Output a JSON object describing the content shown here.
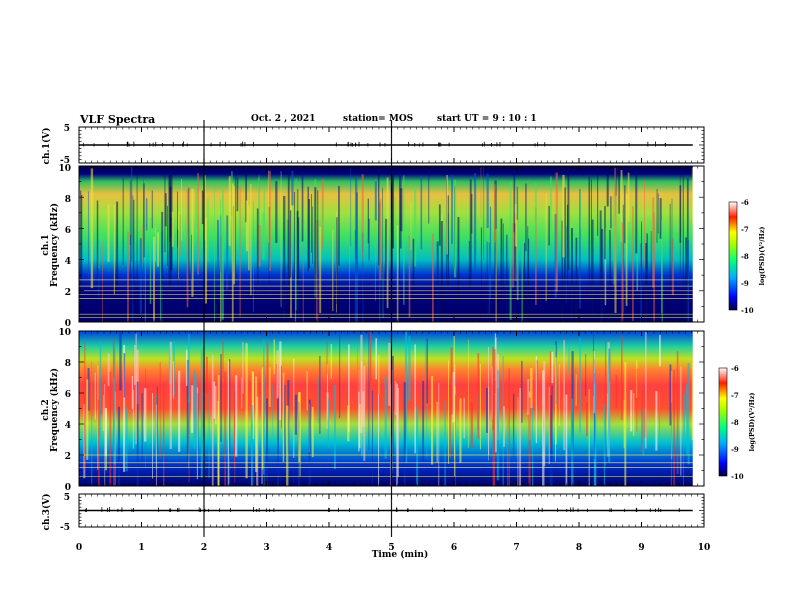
{
  "header": {
    "title": "VLF Spectra",
    "date": "Oct. 2 , 2021",
    "station": "station= MOS",
    "start": "start  UT =   9 : 10 : 1"
  },
  "chart_data": [
    {
      "type": "line",
      "panel": "ch1_voltage",
      "ylabel": "ch.1(V)",
      "yticks": [
        "5",
        "-5"
      ],
      "ylim": [
        -5,
        5
      ],
      "x": [
        0,
        9.82
      ],
      "values": [
        0,
        0
      ]
    },
    {
      "type": "heatmap",
      "panel": "ch1_spectrogram",
      "ylabel_line1": "ch.1",
      "ylabel_line2": "Frequency (kHz)",
      "yticks": [
        "0",
        "2",
        "4",
        "6",
        "8",
        "10"
      ],
      "ylim": [
        0,
        10
      ],
      "xlim": [
        0,
        9.82
      ],
      "lines_khz": [
        0.3,
        0.5,
        1.5,
        1.75,
        2.0,
        2.3,
        2.7
      ],
      "colorbar": {
        "label": "log(PSD)(V²/Hz)",
        "ticks": [
          "-6",
          "-7",
          "-8",
          "-9",
          "-10"
        ],
        "range": [
          -10,
          -6
        ]
      }
    },
    {
      "type": "heatmap",
      "panel": "ch2_spectrogram",
      "ylabel_line1": "ch.2",
      "ylabel_line2": "Frequency (kHz)",
      "yticks": [
        "0",
        "2",
        "4",
        "6",
        "8",
        "10"
      ],
      "ylim": [
        0,
        10
      ],
      "xlim": [
        0,
        9.82
      ],
      "lines_khz": [
        0.6,
        1.2,
        1.5,
        2.0
      ],
      "colorbar": {
        "label": "log(PSD)(V²/Hz)",
        "ticks": [
          "-6",
          "-7",
          "-8",
          "-9",
          "-10"
        ],
        "range": [
          -10,
          -6
        ]
      }
    },
    {
      "type": "line",
      "panel": "ch3_voltage",
      "ylabel": "ch.3(V)",
      "yticks": [
        "5",
        "-5"
      ],
      "ylim": [
        -5,
        5
      ],
      "x": [
        0,
        9.82
      ],
      "values": [
        0,
        0
      ]
    }
  ],
  "xaxis": {
    "label": "Time  (min)",
    "ticks": [
      "0",
      "1",
      "2",
      "3",
      "4",
      "5",
      "6",
      "7",
      "8",
      "9",
      "10"
    ],
    "xlim": [
      0,
      10
    ]
  }
}
